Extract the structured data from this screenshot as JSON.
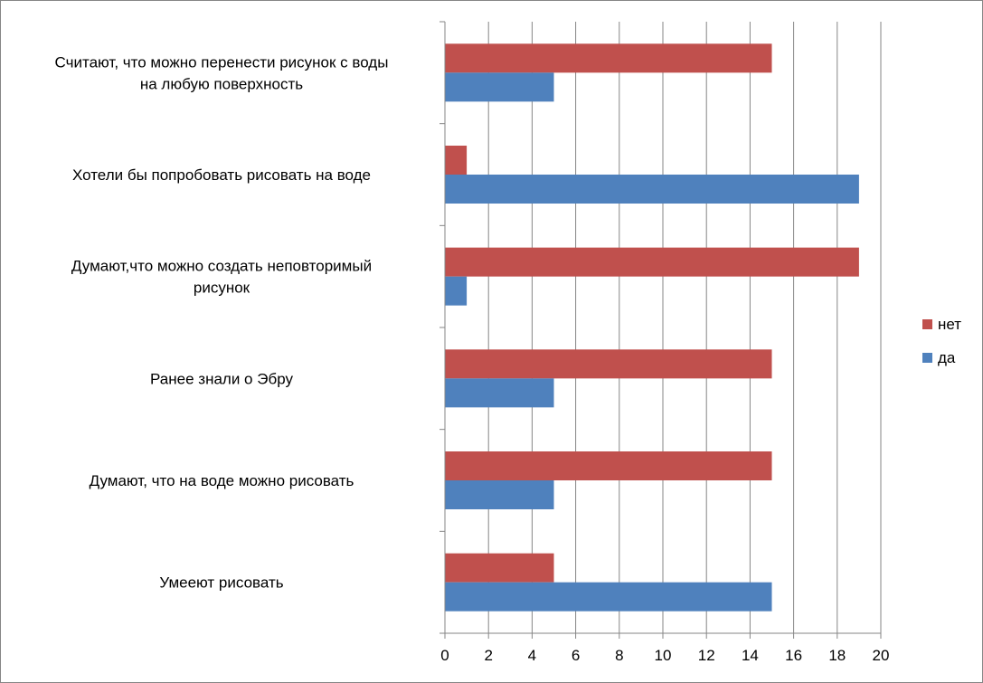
{
  "chart_data": {
    "type": "bar",
    "orientation": "horizontal",
    "categories": [
      "Умееют рисовать",
      "Думают, что на воде можно рисовать",
      "Ранее знали о Эбру",
      "Думают,что можно создать неповторимый рисунок",
      "Хотели бы попробовать рисовать на воде",
      "Считают, что можно перенести рисунок с воды на любую поверхность"
    ],
    "series": [
      {
        "name": "да",
        "color": "#4F81BD",
        "values": [
          15,
          5,
          5,
          1,
          19,
          5
        ]
      },
      {
        "name": "нет",
        "color": "#C0504D",
        "values": [
          5,
          15,
          15,
          19,
          1,
          15
        ]
      }
    ],
    "xlim": [
      0,
      20
    ],
    "xticks": [
      0,
      2,
      4,
      6,
      8,
      10,
      12,
      14,
      16,
      18,
      20
    ],
    "grid": "vertical",
    "legend_position": "right",
    "legend_order": [
      "нет",
      "да"
    ]
  }
}
